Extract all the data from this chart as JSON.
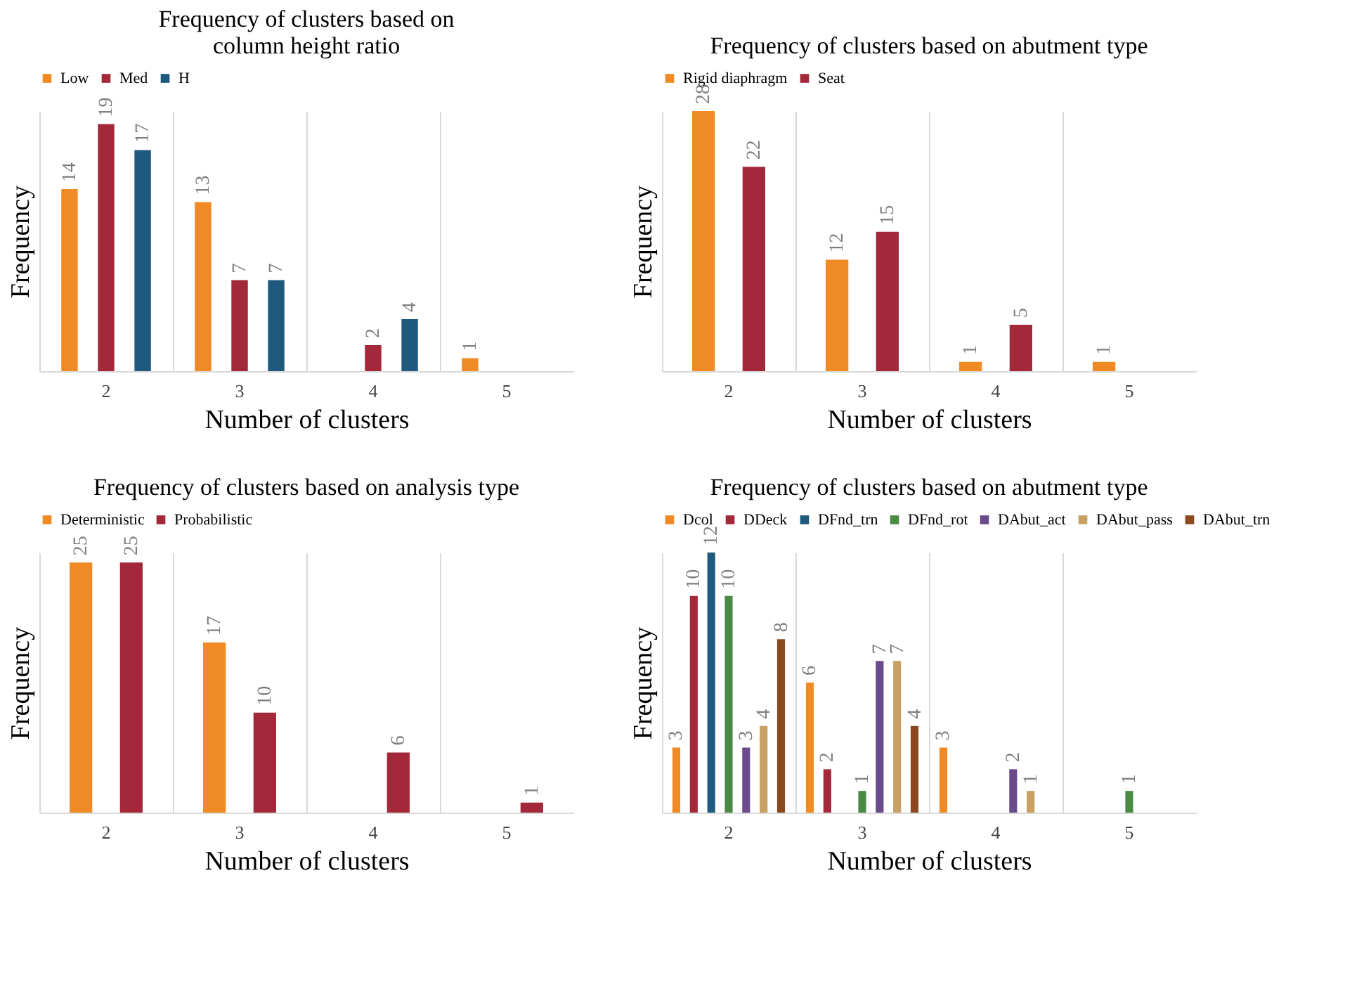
{
  "chart_data": [
    {
      "type": "bar",
      "title": "Frequency of clusters based on\ncolumn height ratio",
      "xlabel": "Number of clusters",
      "ylabel": "Frequency",
      "categories": [
        "2",
        "3",
        "4",
        "5"
      ],
      "data_labels": true,
      "legend": "top",
      "grid": "x",
      "series": [
        {
          "name": "Low",
          "color": "#f08a24",
          "values": [
            14,
            13,
            null,
            1
          ]
        },
        {
          "name": "Med",
          "color": "#a3293a",
          "values": [
            19,
            7,
            2,
            null
          ]
        },
        {
          "name": "H",
          "color": "#1f5a7e",
          "values": [
            17,
            7,
            4,
            null
          ]
        }
      ]
    },
    {
      "type": "bar",
      "title": "Frequency of clusters based on abutment type",
      "xlabel": "Number of clusters",
      "ylabel": "Frequency",
      "categories": [
        "2",
        "3",
        "4",
        "5"
      ],
      "data_labels": true,
      "legend": "top",
      "grid": "x",
      "series": [
        {
          "name": "Rigid diaphragm",
          "color": "#f08a24",
          "values": [
            28,
            12,
            1,
            1
          ]
        },
        {
          "name": "Seat",
          "color": "#a3293a",
          "values": [
            22,
            15,
            5,
            null
          ]
        }
      ]
    },
    {
      "type": "bar",
      "title": "Frequency of clusters based on analysis type",
      "xlabel": "Number of clusters",
      "ylabel": "Frequency",
      "categories": [
        "2",
        "3",
        "4",
        "5"
      ],
      "data_labels": true,
      "legend": "top",
      "grid": "x",
      "series": [
        {
          "name": "Deterministic",
          "color": "#f08a24",
          "values": [
            25,
            17,
            null,
            null
          ]
        },
        {
          "name": "Probabilistic",
          "color": "#a3293a",
          "values": [
            25,
            10,
            6,
            1
          ]
        }
      ]
    },
    {
      "type": "bar",
      "title": "Frequency of clusters based on abutment type",
      "xlabel": "Number of clusters",
      "ylabel": "Frequency",
      "categories": [
        "2",
        "3",
        "4",
        "5"
      ],
      "data_labels": true,
      "legend": "top",
      "grid": "x",
      "series": [
        {
          "name": "Dcol",
          "color": "#f08a24",
          "values": [
            3,
            6,
            3,
            null
          ]
        },
        {
          "name": "DDeck",
          "color": "#a3293a",
          "values": [
            10,
            2,
            null,
            null
          ]
        },
        {
          "name": "DFnd_trn",
          "color": "#1f5a7e",
          "values": [
            12,
            null,
            null,
            null
          ]
        },
        {
          "name": "DFnd_rot",
          "color": "#4a8a45",
          "values": [
            10,
            1,
            null,
            1
          ]
        },
        {
          "name": "DAbut_act",
          "color": "#6b4a8c",
          "values": [
            3,
            7,
            2,
            null
          ]
        },
        {
          "name": "DAbut_pass",
          "color": "#c9a064",
          "values": [
            4,
            7,
            1,
            null
          ]
        },
        {
          "name": "DAbut_trn",
          "color": "#8b4a1e",
          "values": [
            8,
            4,
            null,
            null
          ]
        }
      ]
    }
  ]
}
